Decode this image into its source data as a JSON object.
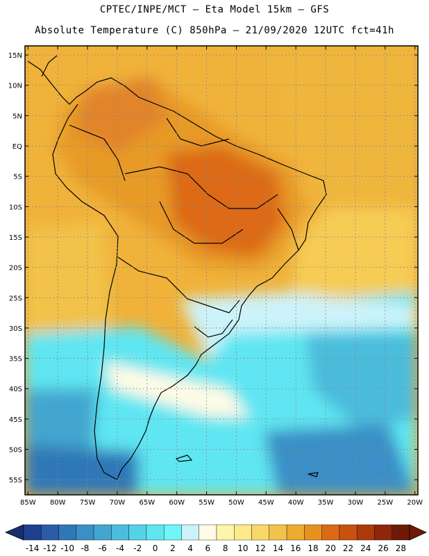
{
  "header": {
    "line1": "CPTEC/INPE/MCT –  Eta Model 15km – GFS",
    "line2": "Absolute Temperature (C) 850hPa – 21/09/2020 12UTC fct=41h"
  },
  "map": {
    "lat_labels": [
      "15N",
      "10N",
      "5N",
      "EQ",
      "5S",
      "10S",
      "15S",
      "20S",
      "25S",
      "30S",
      "35S",
      "40S",
      "45S",
      "50S",
      "55S"
    ],
    "lon_labels": [
      "85W",
      "80W",
      "75W",
      "70W",
      "65W",
      "60W",
      "55W",
      "50W",
      "45W",
      "40W",
      "35W",
      "30W",
      "25W",
      "20W"
    ],
    "lat_values": [
      15,
      10,
      5,
      0,
      -5,
      -10,
      -15,
      -20,
      -25,
      -30,
      -35,
      -40,
      -45,
      -50,
      -55
    ],
    "lon_values": [
      -85,
      -80,
      -75,
      -70,
      -65,
      -60,
      -55,
      -50,
      -45,
      -40,
      -35,
      -30,
      -25,
      -20
    ],
    "extent": {
      "lon_min": -85.5,
      "lon_max": -19.5,
      "lat_min": -57.5,
      "lat_max": 16.5
    }
  },
  "colorbar": {
    "labels": [
      "-14",
      "-12",
      "-10",
      "-8",
      "-6",
      "-4",
      "-2",
      "0",
      "2",
      "4",
      "6",
      "8",
      "10",
      "12",
      "14",
      "16",
      "18",
      "20",
      "22",
      "24",
      "26",
      "28"
    ],
    "colors": [
      "#1f3f8f",
      "#2a5ca8",
      "#2f78b8",
      "#3a8fc6",
      "#43a6d0",
      "#4cbcdc",
      "#55d2e8",
      "#5ee6f2",
      "#6ef6f8",
      "#cdf3fa",
      "#fffbe6",
      "#fff5a8",
      "#fde98a",
      "#f8d86a",
      "#f2c24a",
      "#ecac2e",
      "#e7921f",
      "#dc6a14",
      "#c9500f",
      "#ad3a0c",
      "#8e260a",
      "#6f1a08"
    ],
    "under_color": "#16306e",
    "over_color": "#6f1a08"
  }
}
